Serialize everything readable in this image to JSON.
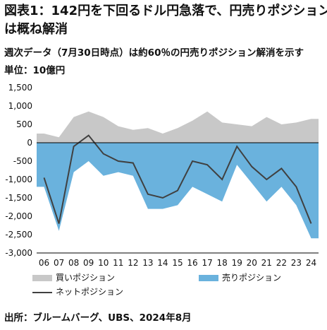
{
  "title_line1": "図表1：142円を下回るドル円急落で、円売りポジション",
  "title_line2": "は概ね解消",
  "subtitle": "週次データ（7月30日時点）は約60％の円売りポジション解消を示す",
  "unit": "単位：10億円",
  "source": "出所：ブルームバーグ、UBS、2024年8月",
  "colors": {
    "long": "#c8c8c8",
    "short": "#6ab2dd",
    "net": "#404040"
  },
  "chart_data": {
    "type": "area",
    "x": [
      "06",
      "07",
      "08",
      "09",
      "10",
      "11",
      "12",
      "13",
      "14",
      "15",
      "16",
      "17",
      "18",
      "19",
      "20",
      "21",
      "22",
      "23",
      "24"
    ],
    "ylim": [
      -3000,
      1500
    ],
    "yticks": [
      1500,
      1000,
      500,
      0,
      -500,
      -1000,
      -1500,
      -2000,
      -2500,
      -3000
    ],
    "ytick_labels": [
      "1,500",
      "1,000",
      "500",
      "0",
      "-500",
      "-1,000",
      "-1,500",
      "-2,000",
      "-2,500",
      "-3,000"
    ],
    "xtick_labels": [
      "06",
      "07",
      "08",
      "09",
      "10",
      "11",
      "12",
      "13",
      "14",
      "15",
      "16",
      "17",
      "18",
      "19",
      "20",
      "21",
      "22",
      "23",
      "24"
    ],
    "series": [
      {
        "name": "買いポジション",
        "color": "#c8c8c8",
        "values": [
          250,
          150,
          700,
          850,
          700,
          450,
          350,
          400,
          250,
          400,
          600,
          850,
          550,
          500,
          450,
          700,
          500,
          550,
          650
        ]
      },
      {
        "name": "売りポジション",
        "color": "#6ab2dd",
        "values": [
          -1200,
          -2400,
          -800,
          -500,
          -900,
          -800,
          -900,
          -1800,
          -1800,
          -1700,
          -1200,
          -1400,
          -1600,
          -600,
          -1100,
          -1600,
          -1200,
          -1700,
          -2600
        ]
      },
      {
        "name": "ネットポジション",
        "color": "#404040",
        "values": [
          -950,
          -2200,
          -100,
          200,
          -300,
          -500,
          -550,
          -1400,
          -1500,
          -1300,
          -500,
          -600,
          -1000,
          -100,
          -650,
          -1000,
          -700,
          -1200,
          -2200
        ]
      }
    ]
  }
}
